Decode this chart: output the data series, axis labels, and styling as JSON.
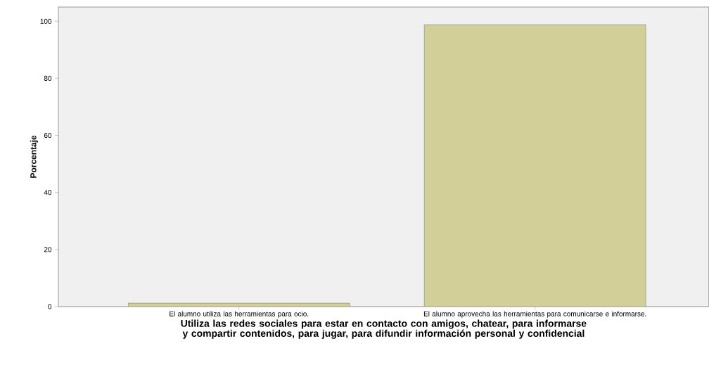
{
  "chart_data": {
    "type": "bar",
    "categories": [
      "El alumno utiliza las herramientas para ocio.",
      "El alumno aprovecha las herramientas para comunicarse e informarse."
    ],
    "values": [
      1.2,
      98.8
    ],
    "color": "#d3cf98",
    "xlabel": "Utiliza las redes sociales para estar en contacto con amigos, chatear, para informarse y compartir contenidos, para jugar, para difundir información personal y confidencial",
    "ylabel": "Porcentaje",
    "ylim": [
      0,
      105
    ],
    "yticks": [
      0,
      20,
      40,
      60,
      80,
      100
    ]
  }
}
